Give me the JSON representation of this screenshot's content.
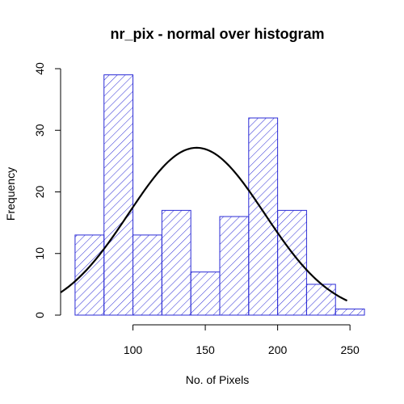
{
  "chart_data": {
    "type": "bar",
    "title": "nr_pix - normal over histogram",
    "xlabel": "No. of Pixels",
    "ylabel": "Frequency",
    "bins": [
      {
        "start": 60,
        "end": 80,
        "count": 13
      },
      {
        "start": 80,
        "end": 100,
        "count": 39
      },
      {
        "start": 100,
        "end": 120,
        "count": 13
      },
      {
        "start": 120,
        "end": 140,
        "count": 17
      },
      {
        "start": 140,
        "end": 160,
        "count": 7
      },
      {
        "start": 160,
        "end": 180,
        "count": 16
      },
      {
        "start": 180,
        "end": 200,
        "count": 32
      },
      {
        "start": 200,
        "end": 220,
        "count": 17
      },
      {
        "start": 220,
        "end": 240,
        "count": 5
      },
      {
        "start": 240,
        "end": 260,
        "count": 1
      }
    ],
    "normal_curve": {
      "mean": 144,
      "sd": 47,
      "n": 160,
      "bin_width": 20,
      "x_from": 50,
      "x_to": 248
    },
    "xticks": [
      100,
      150,
      200,
      250
    ],
    "yticks": [
      0,
      10,
      20,
      30,
      40
    ],
    "xlim": [
      50,
      265
    ],
    "ylim": [
      0,
      40
    ],
    "bar_color": "#2b2bd6",
    "curve_color": "#000000"
  }
}
